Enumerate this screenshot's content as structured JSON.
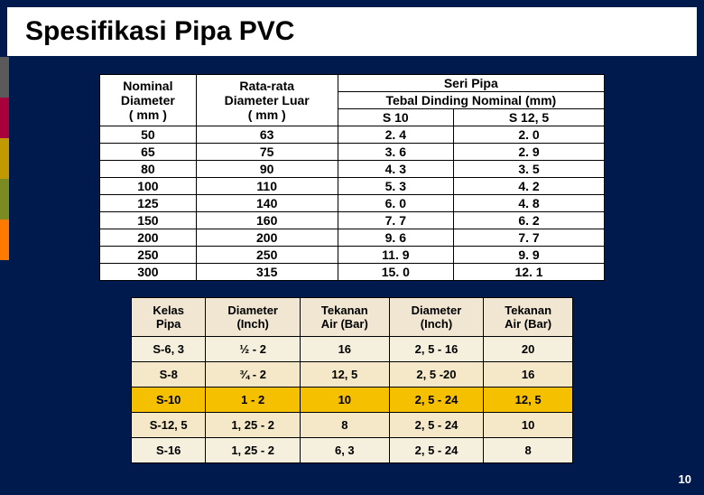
{
  "title": "Spesifikasi Pipa PVC",
  "page_number": "10",
  "sidebar_colors": [
    "#5a5a5a",
    "#a8003a",
    "#c29a00",
    "#7a8c1f",
    "#ff7a00"
  ],
  "table1": {
    "h_nominal_l1": "Nominal",
    "h_nominal_l2": "Diameter",
    "h_nominal_l3": "( mm )",
    "h_rata_l1": "Rata-rata",
    "h_rata_l2": "Diameter Luar",
    "h_rata_l3": "( mm )",
    "h_seri": "Seri Pipa",
    "h_tebal": "Tebal Dinding Nominal (mm)",
    "h_s10": "S 10",
    "h_s125": "S 12, 5",
    "rows": [
      {
        "nom": "50",
        "rata": "63",
        "s10": "2. 4",
        "s125": "2. 0"
      },
      {
        "nom": "65",
        "rata": "75",
        "s10": "3. 6",
        "s125": "2. 9"
      },
      {
        "nom": "80",
        "rata": "90",
        "s10": "4. 3",
        "s125": "3. 5"
      },
      {
        "nom": "100",
        "rata": "110",
        "s10": "5. 3",
        "s125": "4. 2"
      },
      {
        "nom": "125",
        "rata": "140",
        "s10": "6. 0",
        "s125": "4. 8"
      },
      {
        "nom": "150",
        "rata": "160",
        "s10": "7. 7",
        "s125": "6. 2"
      },
      {
        "nom": "200",
        "rata": "200",
        "s10": "9. 6",
        "s125": "7. 7"
      },
      {
        "nom": "250",
        "rata": "250",
        "s10": "11. 9",
        "s125": "9. 9"
      },
      {
        "nom": "300",
        "rata": "315",
        "s10": "15. 0",
        "s125": "12. 1"
      }
    ]
  },
  "table2": {
    "h_kelas_l1": "Kelas",
    "h_kelas_l2": "Pipa",
    "h_dia_l1": "Diameter",
    "h_dia_l2": "(Inch)",
    "h_tek_l1": "Tekanan",
    "h_tek_l2": "Air (Bar)",
    "h_dia2_l1": "Diameter",
    "h_dia2_l2": "(Inch)",
    "h_tek2_l1": "Tekanan",
    "h_tek2_l2": "Air (Bar)",
    "rows": [
      {
        "kelas": "S-6, 3",
        "dia1": "½ - 2",
        "tek1": "16",
        "dia2": "2, 5 - 16",
        "tek2": "20",
        "cls": "row-a"
      },
      {
        "kelas": "S-8",
        "dia1": "¾ - 2",
        "tek1": "12, 5",
        "dia2": "2, 5 -20",
        "tek2": "16",
        "cls": "row-b"
      },
      {
        "kelas": "S-10",
        "dia1": "1 - 2",
        "tek1": "10",
        "dia2": "2, 5 - 24",
        "tek2": "12, 5",
        "cls": "row-hl"
      },
      {
        "kelas": "S-12, 5",
        "dia1": "1, 25 - 2",
        "tek1": "8",
        "dia2": "2, 5 - 24",
        "tek2": "10",
        "cls": "row-b"
      },
      {
        "kelas": "S-16",
        "dia1": "1, 25 - 2",
        "tek1": "6, 3",
        "dia2": "2, 5 - 24",
        "tek2": "8",
        "cls": "row-a"
      }
    ]
  }
}
